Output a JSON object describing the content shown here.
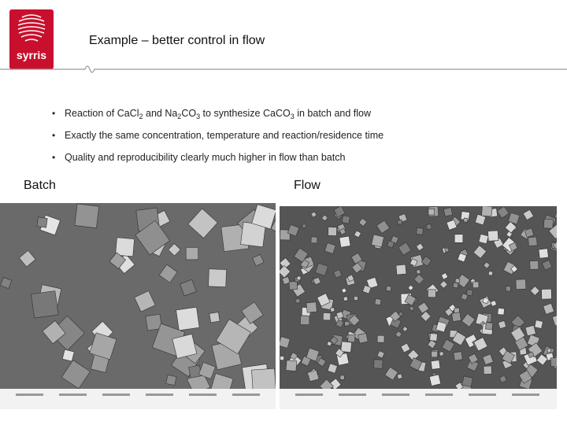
{
  "logo": "syrris",
  "header": {
    "title": "Example – better control in flow"
  },
  "bullets": [
    [
      "Reaction of CaCl",
      "2",
      " and Na",
      "2",
      "CO",
      "3",
      " to synthesize CaCO",
      "3",
      " in batch and flow"
    ],
    [
      "Exactly the same concentration, temperature and reaction/residence time"
    ],
    [
      "Quality and reproducibility clearly much higher in flow than batch"
    ]
  ],
  "images": [
    {
      "label": "Batch"
    },
    {
      "label": "Flow"
    }
  ]
}
